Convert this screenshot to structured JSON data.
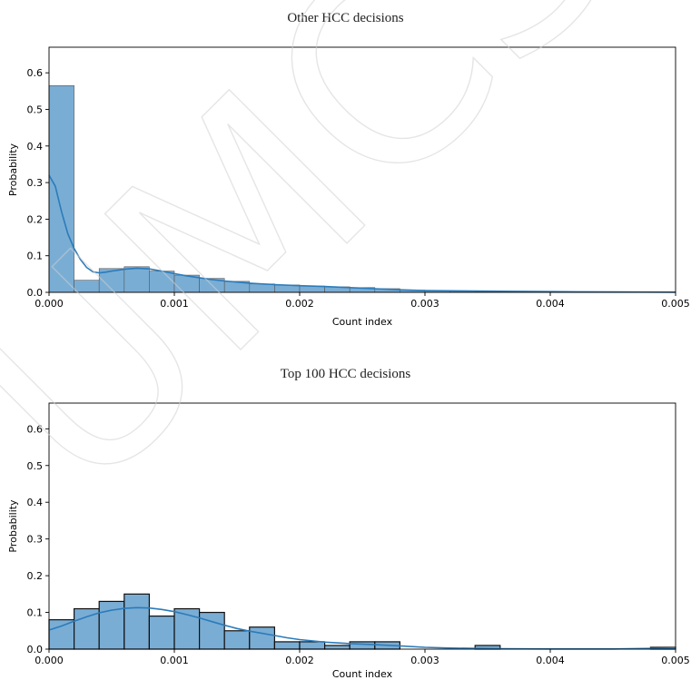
{
  "watermark": {
    "text": "UMCS",
    "color": "#d0d0d0"
  },
  "chart_data": [
    {
      "type": "bar",
      "title": "Other HCC decisions",
      "xlabel": "Count index",
      "ylabel": "Probability",
      "xlim": [
        0,
        0.005
      ],
      "ylim": [
        0,
        0.67
      ],
      "xticks": [
        "0.000",
        "0.001",
        "0.002",
        "0.003",
        "0.004",
        "0.005"
      ],
      "yticks": [
        "0.0",
        "0.1",
        "0.2",
        "0.3",
        "0.4",
        "0.5",
        "0.6"
      ],
      "grid": false,
      "bar_color": "#7aadd4",
      "kde_color": "#2b7bba",
      "bin_edges": [
        0,
        0.0002,
        0.0004,
        0.0006,
        0.0008,
        0.001,
        0.0012,
        0.0014,
        0.0016,
        0.0018,
        0.002,
        0.0022,
        0.0024,
        0.0026,
        0.0028,
        0.003,
        0.0032,
        0.0034,
        0.0036,
        0.0038,
        0.004,
        0.0042,
        0.0044,
        0.0046,
        0.0048,
        0.005
      ],
      "values": [
        0.565,
        0.033,
        0.065,
        0.07,
        0.058,
        0.047,
        0.038,
        0.03,
        0.023,
        0.02,
        0.017,
        0.015,
        0.013,
        0.01,
        0.006,
        0.004,
        0.003,
        0.002,
        0.002,
        0.001,
        0.001,
        0.001,
        0.001,
        0.0005,
        0.0005
      ],
      "kde": {
        "x": [
          0,
          5e-05,
          0.0001,
          0.00015,
          0.0002,
          0.00025,
          0.0003,
          0.00035,
          0.0004,
          0.00045,
          0.0005,
          0.0006,
          0.0007,
          0.0008,
          0.0009,
          0.001,
          0.0011,
          0.0012,
          0.0013,
          0.0014,
          0.0015,
          0.0016,
          0.0018,
          0.002,
          0.0022,
          0.0024,
          0.0026,
          0.0028,
          0.003,
          0.0033,
          0.0036,
          0.004,
          0.0045,
          0.005
        ],
        "y": [
          0.32,
          0.29,
          0.22,
          0.16,
          0.12,
          0.09,
          0.068,
          0.056,
          0.053,
          0.055,
          0.058,
          0.063,
          0.066,
          0.064,
          0.058,
          0.051,
          0.045,
          0.04,
          0.035,
          0.031,
          0.028,
          0.025,
          0.021,
          0.018,
          0.016,
          0.013,
          0.01,
          0.007,
          0.005,
          0.004,
          0.003,
          0.002,
          0.001,
          0.0005
        ]
      }
    },
    {
      "type": "bar",
      "title": "Top 100 HCC decisions",
      "xlabel": "Count index",
      "ylabel": "Probability",
      "xlim": [
        0,
        0.005
      ],
      "ylim": [
        0,
        0.67
      ],
      "xticks": [
        "0.000",
        "0.001",
        "0.002",
        "0.003",
        "0.004",
        "0.005"
      ],
      "yticks": [
        "0.0",
        "0.1",
        "0.2",
        "0.3",
        "0.4",
        "0.5",
        "0.6"
      ],
      "grid": false,
      "bar_color": "#7aadd4",
      "kde_color": "#2b7bba",
      "bin_edges": [
        0,
        0.0002,
        0.0004,
        0.0006,
        0.0008,
        0.001,
        0.0012,
        0.0014,
        0.0016,
        0.0018,
        0.002,
        0.0022,
        0.0024,
        0.0026,
        0.0028,
        0.003,
        0.0032,
        0.0034,
        0.0036,
        0.0038,
        0.004,
        0.0042,
        0.0044,
        0.0046,
        0.0048,
        0.005
      ],
      "values": [
        0.08,
        0.11,
        0.13,
        0.15,
        0.09,
        0.11,
        0.1,
        0.05,
        0.06,
        0.02,
        0.02,
        0.01,
        0.02,
        0.02,
        0,
        0,
        0,
        0.01,
        0,
        0,
        0,
        0,
        0,
        0,
        0.005
      ],
      "kde": {
        "x": [
          0,
          0.0001,
          0.0002,
          0.0003,
          0.0004,
          0.0005,
          0.0006,
          0.0007,
          0.0008,
          0.0009,
          0.001,
          0.0011,
          0.0012,
          0.0013,
          0.0014,
          0.0015,
          0.0016,
          0.0017,
          0.0018,
          0.0019,
          0.002,
          0.0022,
          0.0024,
          0.0026,
          0.0028,
          0.003,
          0.0032,
          0.0034,
          0.0036,
          0.004,
          0.0045,
          0.005
        ],
        "y": [
          0.052,
          0.063,
          0.076,
          0.088,
          0.099,
          0.106,
          0.111,
          0.113,
          0.112,
          0.108,
          0.102,
          0.094,
          0.085,
          0.075,
          0.065,
          0.056,
          0.049,
          0.043,
          0.037,
          0.031,
          0.026,
          0.019,
          0.015,
          0.012,
          0.009,
          0.005,
          0.003,
          0.002,
          0.001,
          0.0005,
          0.0005,
          0.003
        ]
      }
    }
  ]
}
